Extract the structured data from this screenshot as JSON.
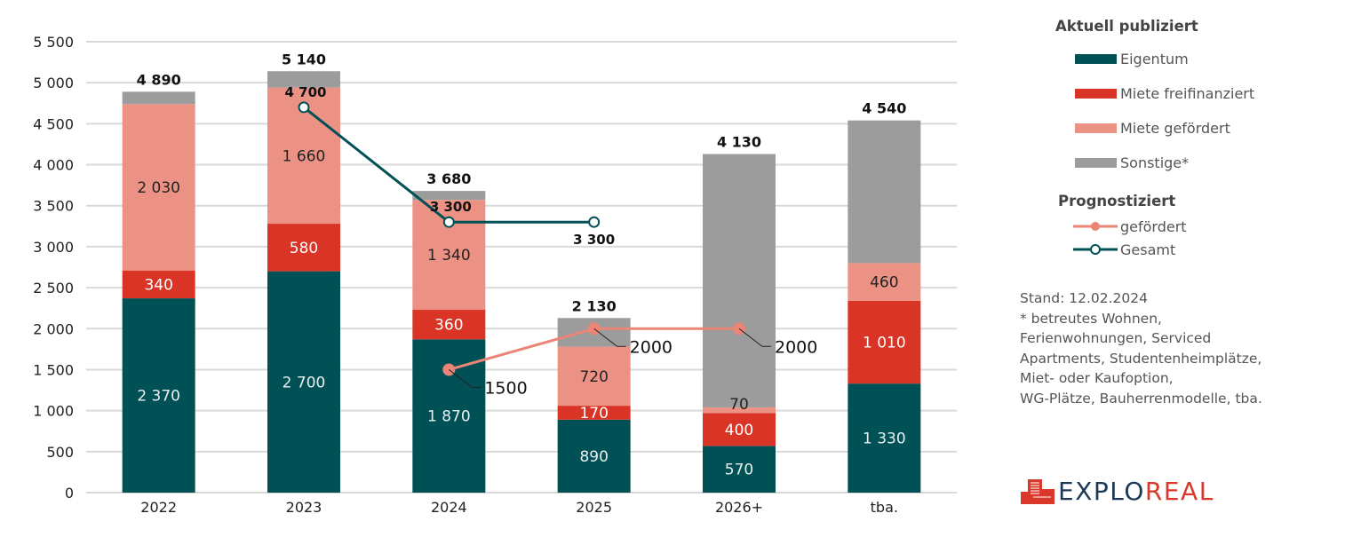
{
  "chart_data": {
    "type": "bar",
    "stacked": true,
    "title": "",
    "xlabel": "",
    "ylabel": "",
    "ylim": [
      0,
      5500
    ],
    "yticks": [
      0,
      500,
      1000,
      1500,
      2000,
      2500,
      3000,
      3500,
      4000,
      4500,
      5000,
      5500
    ],
    "ytick_labels": [
      "0",
      "500",
      "1 000",
      "1 500",
      "2 000",
      "2 500",
      "3 000",
      "3 500",
      "4 000",
      "4 500",
      "5 000",
      "5 500"
    ],
    "grid": true,
    "categories": [
      "2022",
      "2023",
      "2024",
      "2025",
      "2026+",
      "tba."
    ],
    "series": [
      {
        "name": "Eigentum",
        "color": "#005156",
        "label_color": "#e8f0f0",
        "values": [
          2370,
          2700,
          1870,
          890,
          570,
          1330
        ],
        "labels": [
          "2 370",
          "2 700",
          "1 870",
          "890",
          "570",
          "1 330"
        ]
      },
      {
        "name": "Miete freifinanziert",
        "color": "#d93425",
        "label_color": "#ffffff",
        "values": [
          340,
          580,
          360,
          170,
          400,
          1010
        ],
        "labels": [
          "340",
          "580",
          "360",
          "170",
          "400",
          "1 010"
        ]
      },
      {
        "name": "Miete gefördert",
        "color": "#ec9285",
        "label_color": "#222222",
        "values": [
          2030,
          1660,
          1340,
          720,
          70,
          460
        ],
        "labels": [
          "2 030",
          "1 660",
          "1 340",
          "720",
          "70",
          "460"
        ]
      },
      {
        "name": "Sonstige*",
        "color": "#9c9c9c",
        "label_color": "",
        "values": [
          150,
          200,
          110,
          350,
          3090,
          1740
        ],
        "labels": [
          "",
          "",
          "",
          "",
          "",
          ""
        ]
      }
    ],
    "totals": [
      4890,
      5140,
      3680,
      2130,
      4130,
      4540
    ],
    "total_labels": [
      "4 890",
      "5 140",
      "3 680",
      "2 130",
      "4 130",
      "4 540"
    ],
    "lines": [
      {
        "name": "gefördert",
        "color": "#eb8577",
        "marker": "filled-circle",
        "points": [
          {
            "category": "2024",
            "value": 1500,
            "label": "1500"
          },
          {
            "category": "2025",
            "value": 2000,
            "label": "2000"
          },
          {
            "category": "2026+",
            "value": 2000,
            "label": "2000"
          }
        ]
      },
      {
        "name": "Gesamt",
        "color": "#005156",
        "marker": "hollow-circle",
        "points": [
          {
            "category": "2023",
            "value": 4700,
            "label": "4 700"
          },
          {
            "category": "2024",
            "value": 3300,
            "label": "3 300"
          },
          {
            "category": "2025",
            "value": 3300,
            "label": "3 300"
          }
        ]
      }
    ],
    "legend_position": "right"
  },
  "legend": {
    "group1_title": "Aktuell publiziert",
    "group1_items": [
      {
        "label": "Eigentum",
        "color": "#005156"
      },
      {
        "label": "Miete freifinanziert",
        "color": "#d93425"
      },
      {
        "label": "Miete gefördert",
        "color": "#ec9285"
      },
      {
        "label": "Sonstige*",
        "color": "#9c9c9c"
      }
    ],
    "group2_title": "Prognostiziert",
    "group2_items": [
      {
        "label": "gefördert",
        "color": "#eb8577",
        "marker": "filled-circle"
      },
      {
        "label": "Gesamt",
        "color": "#005156",
        "marker": "hollow-circle"
      }
    ]
  },
  "notes": {
    "stand": "Stand: 12.02.2024",
    "lines": [
      "* betreutes Wohnen,",
      "Ferienwohnungen, Serviced",
      "Apartments, Studentenheimplätze,",
      "Miet- oder Kaufoption,",
      "WG-Plätze, Bauherrenmodelle, tba."
    ]
  },
  "logo": {
    "part1": "EXPLO",
    "part2": "REAL",
    "icon": "building-icon",
    "color1": "#1c3a58",
    "color2": "#d9382a"
  }
}
